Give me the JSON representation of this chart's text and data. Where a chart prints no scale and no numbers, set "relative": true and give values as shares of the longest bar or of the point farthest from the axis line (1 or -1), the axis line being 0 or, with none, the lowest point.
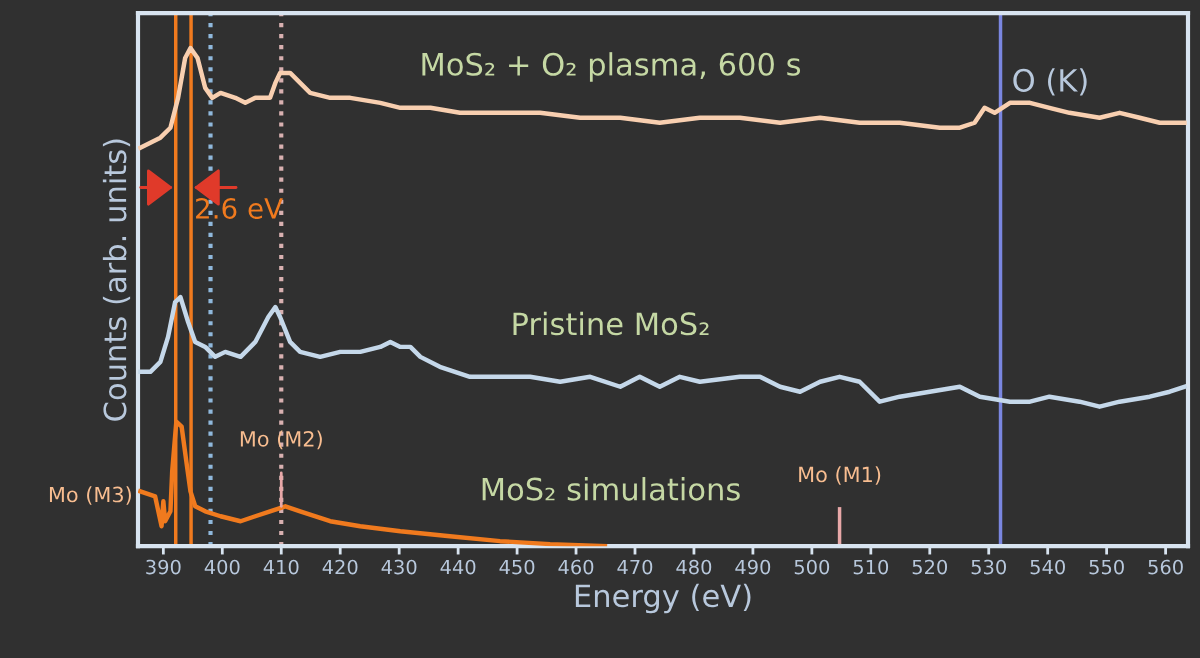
{
  "chart_data": {
    "type": "line",
    "relative": true,
    "xlabel": "Energy (eV)",
    "ylabel": "Counts (arb. units)",
    "xlim": [
      385.7,
      563.8
    ],
    "xticks": [
      390,
      400,
      410,
      420,
      430,
      440,
      450,
      460,
      470,
      480,
      490,
      500,
      510,
      520,
      530,
      540,
      550,
      560
    ],
    "grid": false,
    "legend": false,
    "marker": "none",
    "line_style": "solid",
    "series": [
      {
        "name": "MoS₂ + O₂ plasma, 600 s",
        "color": "#f8cfb0",
        "x": [
          386.1,
          387.8,
          389.5,
          391.2,
          392.5,
          393.7,
          394.6,
          395.8,
          397.1,
          398.3,
          399.7,
          402.2,
          403.9,
          405.6,
          408.1,
          409.0,
          409.8,
          411.5,
          413.2,
          414.9,
          418.3,
          421.7,
          426.8,
          430.2,
          435.3,
          440.3,
          447.1,
          453.9,
          460.7,
          467.5,
          474.2,
          481.0,
          487.8,
          494.6,
          501.4,
          508.1,
          514.9,
          521.7,
          525.1,
          527.6,
          529.3,
          531.0,
          533.6,
          537.0,
          540.3,
          543.7,
          548.8,
          552.2,
          555.6,
          559.0,
          563.2
        ],
        "values": [
          0.8,
          0.81,
          0.82,
          0.84,
          0.9,
          0.98,
          1.0,
          0.98,
          0.92,
          0.9,
          0.91,
          0.9,
          0.89,
          0.9,
          0.9,
          0.93,
          0.95,
          0.95,
          0.93,
          0.91,
          0.9,
          0.9,
          0.89,
          0.88,
          0.88,
          0.87,
          0.87,
          0.87,
          0.86,
          0.86,
          0.85,
          0.86,
          0.86,
          0.85,
          0.86,
          0.85,
          0.85,
          0.84,
          0.84,
          0.85,
          0.88,
          0.87,
          0.89,
          0.89,
          0.88,
          0.87,
          0.86,
          0.87,
          0.86,
          0.85,
          0.85
        ]
      },
      {
        "name": "Pristine MoS₂",
        "color": "#c5d8ea",
        "x": [
          386.1,
          387.8,
          389.5,
          390.8,
          392.0,
          392.9,
          394.2,
          395.4,
          397.1,
          398.8,
          400.5,
          403.1,
          405.6,
          407.8,
          409.0,
          409.8,
          411.5,
          413.2,
          416.6,
          420.0,
          423.4,
          426.8,
          428.5,
          430.2,
          431.9,
          433.6,
          436.9,
          442.0,
          447.1,
          452.2,
          457.3,
          462.4,
          467.5,
          470.8,
          474.2,
          477.6,
          481.0,
          487.8,
          491.2,
          494.6,
          498.0,
          501.4,
          504.7,
          508.1,
          511.5,
          514.9,
          520.0,
          525.1,
          528.5,
          533.6,
          537.0,
          540.3,
          545.4,
          548.8,
          552.2,
          557.3,
          560.7,
          563.2
        ],
        "values": [
          0.35,
          0.35,
          0.37,
          0.42,
          0.49,
          0.5,
          0.45,
          0.41,
          0.4,
          0.38,
          0.39,
          0.38,
          0.41,
          0.46,
          0.48,
          0.46,
          0.41,
          0.39,
          0.38,
          0.39,
          0.39,
          0.4,
          0.41,
          0.4,
          0.4,
          0.38,
          0.36,
          0.34,
          0.34,
          0.34,
          0.33,
          0.34,
          0.32,
          0.34,
          0.32,
          0.34,
          0.33,
          0.34,
          0.34,
          0.32,
          0.31,
          0.33,
          0.34,
          0.33,
          0.29,
          0.3,
          0.31,
          0.32,
          0.3,
          0.29,
          0.29,
          0.3,
          0.29,
          0.28,
          0.29,
          0.3,
          0.31,
          0.32
        ]
      },
      {
        "name": "MoS₂ simulations",
        "color": "#f07a1e",
        "x": [
          386.1,
          388.6,
          389.7,
          390.0,
          390.3,
          391.2,
          391.5,
          392.2,
          393.1,
          393.9,
          394.6,
          395.4,
          397.1,
          399.7,
          403.1,
          405.6,
          408.1,
          410.7,
          413.2,
          418.3,
          423.4,
          430.2,
          438.6,
          447.1,
          455.6,
          464.9
        ],
        "values": [
          0.11,
          0.1,
          0.04,
          0.09,
          0.05,
          0.07,
          0.15,
          0.25,
          0.24,
          0.17,
          0.11,
          0.08,
          0.07,
          0.06,
          0.05,
          0.06,
          0.07,
          0.08,
          0.07,
          0.05,
          0.04,
          0.03,
          0.02,
          0.01,
          0.004,
          0
        ]
      }
    ],
    "ref_lines": [
      {
        "axis": "x",
        "value": 392.1,
        "color": "#f07a1e",
        "line_style": "solid"
      },
      {
        "axis": "x",
        "value": 394.7,
        "color": "#f07a1e",
        "line_style": "solid"
      },
      {
        "axis": "x",
        "value": 398,
        "color": "#8fb8dc",
        "line_style": "dotted"
      },
      {
        "axis": "x",
        "value": 410,
        "color": "#d8b0b0",
        "line_style": "dotted"
      },
      {
        "axis": "x",
        "value": 532,
        "color": "#7a86e0",
        "line_style": "solid"
      },
      {
        "axis": "x",
        "value": 504.7,
        "color": "#e8a8a8",
        "line_style": "solid",
        "label": "Mo (M1)"
      }
    ],
    "annotations": [
      {
        "text": "2.6 eV",
        "x": 394.7,
        "y": 0.72
      },
      {
        "text": "O (K)",
        "x": 532,
        "y": 0.9
      },
      {
        "text": "Mo (M3)",
        "x": 392.1,
        "y": 0.1
      },
      {
        "text": "Mo (M2)",
        "x": 410,
        "y": 0.08
      }
    ]
  }
}
